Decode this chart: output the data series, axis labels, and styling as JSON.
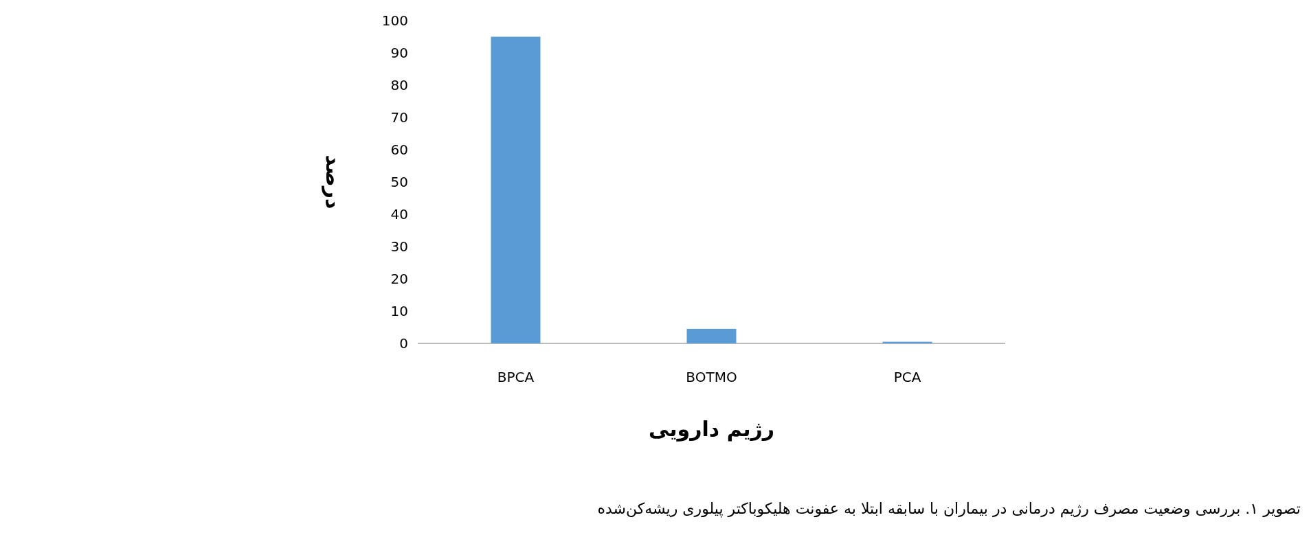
{
  "chart_data": {
    "type": "bar",
    "xlabel": "رژیم دارویی",
    "ylabel": "درصد",
    "categories": [
      "BPCA",
      "BOTMO",
      "PCA"
    ],
    "values": [
      95,
      4.5,
      0.5
    ],
    "color": "#5b9bd5",
    "ylim": [
      0,
      100
    ],
    "yticks": [
      0,
      10,
      20,
      30,
      40,
      50,
      60,
      70,
      80,
      90,
      100
    ],
    "grid": false,
    "annotations": [
      "تصویر ۱. بررسی وضعیت مصرف رژیم درمانی در بیماران با سابقه ابتلا به عفونت هلیکوباکتر پیلوری ریشه‌کن‌شده"
    ]
  }
}
